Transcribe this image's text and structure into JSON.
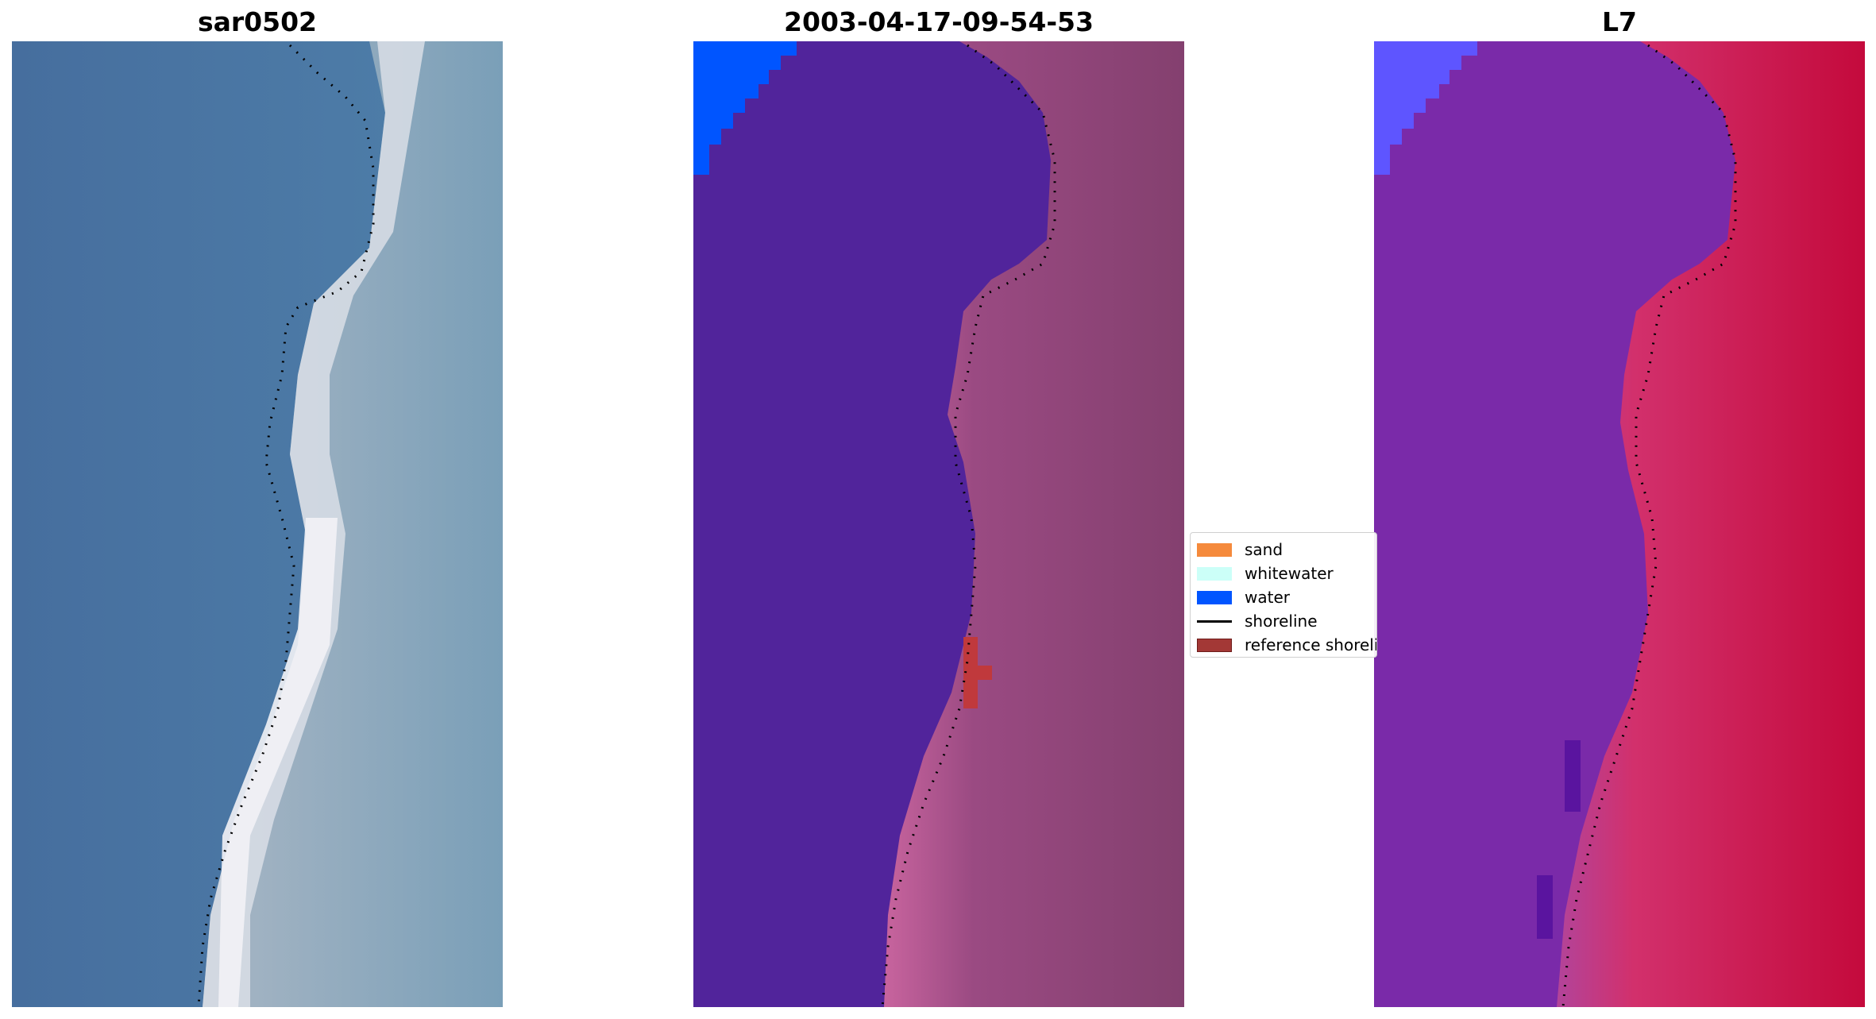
{
  "panels": [
    {
      "title": "sar0502"
    },
    {
      "title": "2003-04-17-09-54-53"
    },
    {
      "title": "L7"
    }
  ],
  "legend": {
    "items": [
      {
        "label": "sand",
        "color": "#f58a3c"
      },
      {
        "label": "whitewater",
        "color": "#ccfff8"
      },
      {
        "label": "water",
        "color": "#0055ff"
      },
      {
        "label": "shoreline",
        "color": "#000000",
        "kind": "line"
      },
      {
        "label": "reference shoreline",
        "color": "#a33836",
        "border": "#6e1c1a"
      }
    ]
  },
  "colors": {
    "rgb_water": "#4a77a5",
    "rgb_surf": "#dfe3ea",
    "rgb_land": "#7e9fb5",
    "class_water": "#51249b",
    "class_land": "#8a3f78",
    "class_land_light": "#c8649e",
    "class_blue": "#0055ff",
    "class_ref": "#c0393c",
    "ndwi_water": "#7a2aa9",
    "ndwi_land": "#c40a3c",
    "ndwi_blue": "#5e55ff",
    "shoreline": "#000000"
  }
}
